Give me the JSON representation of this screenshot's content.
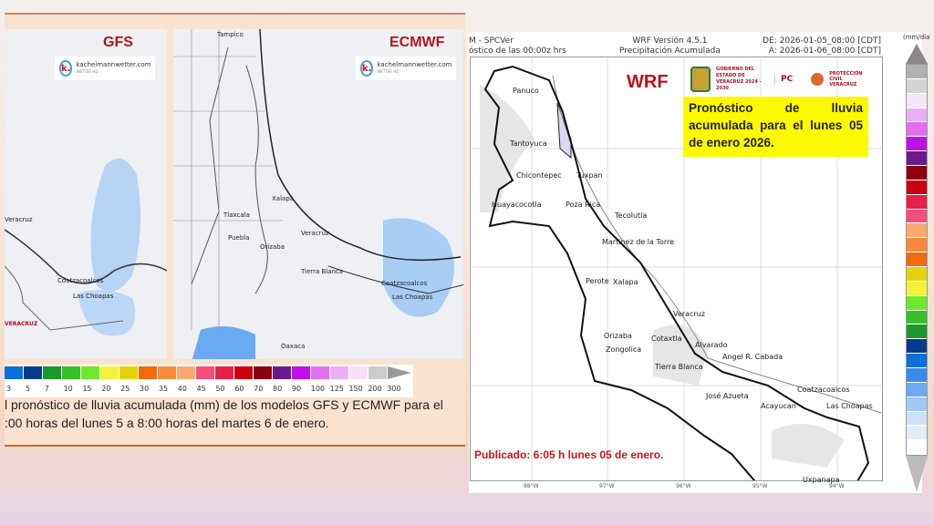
{
  "left_panel": {
    "gfs": {
      "title": "GFS",
      "logo": "kachelmannwetter.com",
      "logo_sub": "WETTER HD",
      "labels": [
        "Veracruz",
        "Coatzacoalcos",
        "Las Choapas",
        "VERACRUZ"
      ]
    },
    "ecmwf": {
      "title": "ECMWF",
      "logo": "kachelmannwetter.com",
      "logo_sub": "WETTER HD",
      "labels": [
        "Tampico",
        "Xalapa",
        "Veracruz",
        "Puebla",
        "Tlaxcala",
        "Orizaba",
        "Tierra Blanca",
        "Coatzacoalcos",
        "Las Choapas",
        "Oaxaca"
      ]
    },
    "colorbar": {
      "ticks": [
        "3",
        "5",
        "7",
        "10",
        "15",
        "20",
        "25",
        "30",
        "35",
        "40",
        "45",
        "50",
        "60",
        "70",
        "80",
        "90",
        "100",
        "125",
        "150",
        "200",
        "300"
      ],
      "colors": [
        "#0a6fd8",
        "#083a8c",
        "#1a9a2a",
        "#36c02a",
        "#6ee82a",
        "#f6f23a",
        "#e6d20a",
        "#f26a0a",
        "#f68a3a",
        "#f8a870",
        "#f2507a",
        "#e8204a",
        "#c80010",
        "#8a0010",
        "#6a1a8a",
        "#c010e8",
        "#e070f0",
        "#eab0f6",
        "#f4e0f6",
        "#cccccc"
      ]
    },
    "caption_line1": "l pronóstico de lluvia acumulada (mm) de los modelos GFS y ECMWF para el",
    "caption_line2": ":00 horas del lunes 5 a 8:00 horas del martes 6 de enero."
  },
  "right_panel": {
    "header_left_1": "M - SPCVer",
    "header_left_2": "óstico de las 00:00z hrs",
    "header_center_1": "WRF Versión 4.5.1",
    "header_center_2": "Precipitación Acumulada",
    "header_right_1": "DE: 2026-01-05_08:00 [CDT]",
    "header_right_2": "A: 2026-01-06_08:00 [CDT]",
    "model": "WRF",
    "gov_logo": "GOBIERNO DEL ESTADO DE VERACRUZ 2024 - 2030",
    "pc_logo": "PC",
    "pc_veracruz_logo": "PROTECCIÓN CIVIL VERACRUZ",
    "headline": "Pronóstico de lluvia acumulada para el lunes 05 de enero 2026.",
    "published": "Publicado: 6:05 h lunes 05 de enero.",
    "colorbar_unit": "(mm/día",
    "colorbar_colors": [
      "#b0b0b0",
      "#d4d4d4",
      "#f6e6f6",
      "#eab0f6",
      "#e070f0",
      "#c010e8",
      "#6a1a8a",
      "#8a0010",
      "#c80010",
      "#e8204a",
      "#f2507a",
      "#f8a870",
      "#f68a3a",
      "#f26a0a",
      "#e6d20a",
      "#f6f23a",
      "#6ee82a",
      "#36c02a",
      "#1a9a2a",
      "#083a8c",
      "#0a6fd8",
      "#3a8ae8",
      "#6aaaf0",
      "#a0c8f6",
      "#cce0f8",
      "#e6ecf6",
      "#ffffff"
    ],
    "x_ticks": [
      "98°W",
      "97°W",
      "96°W",
      "95°W",
      "94°W"
    ],
    "cities": [
      "Panuco",
      "Tantoyuca",
      "Chicontepec",
      "Tuxpan",
      "Huayacocotla",
      "Poza Rica",
      "Tecolutla",
      "Martínez de la Torre",
      "Perote",
      "Xalapa",
      "Veracruz",
      "Orizaba",
      "Cotaxtla",
      "Alvarado",
      "Zongolica",
      "Tierra Blanca",
      "Angel R. Cabada",
      "José Azueta",
      "Acayucan",
      "Coatzacoalcos",
      "Las Choapas",
      "Uxpanapa"
    ]
  }
}
